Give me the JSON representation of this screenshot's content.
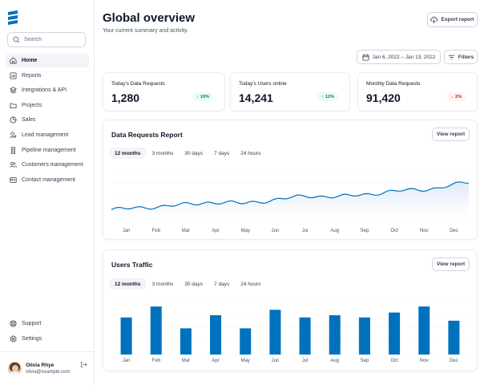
{
  "search": {
    "placeholder": "Search"
  },
  "sidebar": {
    "items": [
      {
        "label": "Home",
        "icon": "home-icon",
        "active": true
      },
      {
        "label": "Reports",
        "icon": "bar-chart-icon"
      },
      {
        "label": "Integrations & API",
        "icon": "layers-icon"
      },
      {
        "label": "Projects",
        "icon": "folder-icon"
      },
      {
        "label": "Sales",
        "icon": "pie-chart-icon"
      },
      {
        "label": "Lead management",
        "icon": "user-add-icon"
      },
      {
        "label": "Pipeline management",
        "icon": "pipeline-icon"
      },
      {
        "label": "Customers management",
        "icon": "users-icon"
      },
      {
        "label": "Contact management",
        "icon": "contact-card-icon"
      }
    ],
    "bottom": [
      {
        "label": "Support",
        "icon": "lifebuoy-icon"
      },
      {
        "label": "Settings",
        "icon": "gear-icon"
      }
    ]
  },
  "user": {
    "name": "Olivia Rhye",
    "email": "olivia@example.com"
  },
  "header": {
    "title": "Global overview",
    "subtitle": "Your current summary and activity.",
    "export_label": "Export report",
    "date_range": "Jan 6, 2022 – Jan 13, 2022",
    "filters_label": "Filters"
  },
  "stats": [
    {
      "label": "Today's Data Requests",
      "value": "1,280",
      "change": "10%",
      "direction": "up"
    },
    {
      "label": "Today's Users online",
      "value": "14,241",
      "change": "12%",
      "direction": "up"
    },
    {
      "label": "Monthly Data Requests",
      "value": "91,420",
      "change": "2%",
      "direction": "down"
    }
  ],
  "tabs": [
    "12 months",
    "3 months",
    "30 days",
    "7 days",
    "24 hours"
  ],
  "requests_report": {
    "title": "Data Requests Report",
    "view_label": "View report",
    "active_tab": "12 months"
  },
  "users_traffic": {
    "title": "Users Traffic",
    "view_label": "View report",
    "active_tab": "12 months"
  },
  "colors": {
    "accent": "#0071bd",
    "area_top": "#dbe8f7",
    "area_bottom": "#ffffff"
  },
  "chart_data": [
    {
      "type": "area",
      "categories": [
        "Jan",
        "Feb",
        "Mar",
        "Apr",
        "May",
        "Jun",
        "Jul",
        "Aug",
        "Sep",
        "Oct",
        "Nov",
        "Dec"
      ],
      "series": [
        {
          "values": [
            10,
            14,
            18,
            24,
            22,
            28,
            36,
            34,
            40,
            46,
            50,
            62
          ]
        }
      ]
    },
    {
      "type": "bar",
      "categories": [
        "Jan",
        "Feb",
        "Mar",
        "Apr",
        "May",
        "Jun",
        "Jul",
        "Aug",
        "Sep",
        "Oct",
        "Nov",
        "Dec"
      ],
      "series": [
        {
          "values": [
            68,
            88,
            48,
            72,
            48,
            82,
            68,
            72,
            68,
            77,
            88,
            62
          ]
        }
      ],
      "ylim": [
        0,
        100
      ]
    }
  ]
}
